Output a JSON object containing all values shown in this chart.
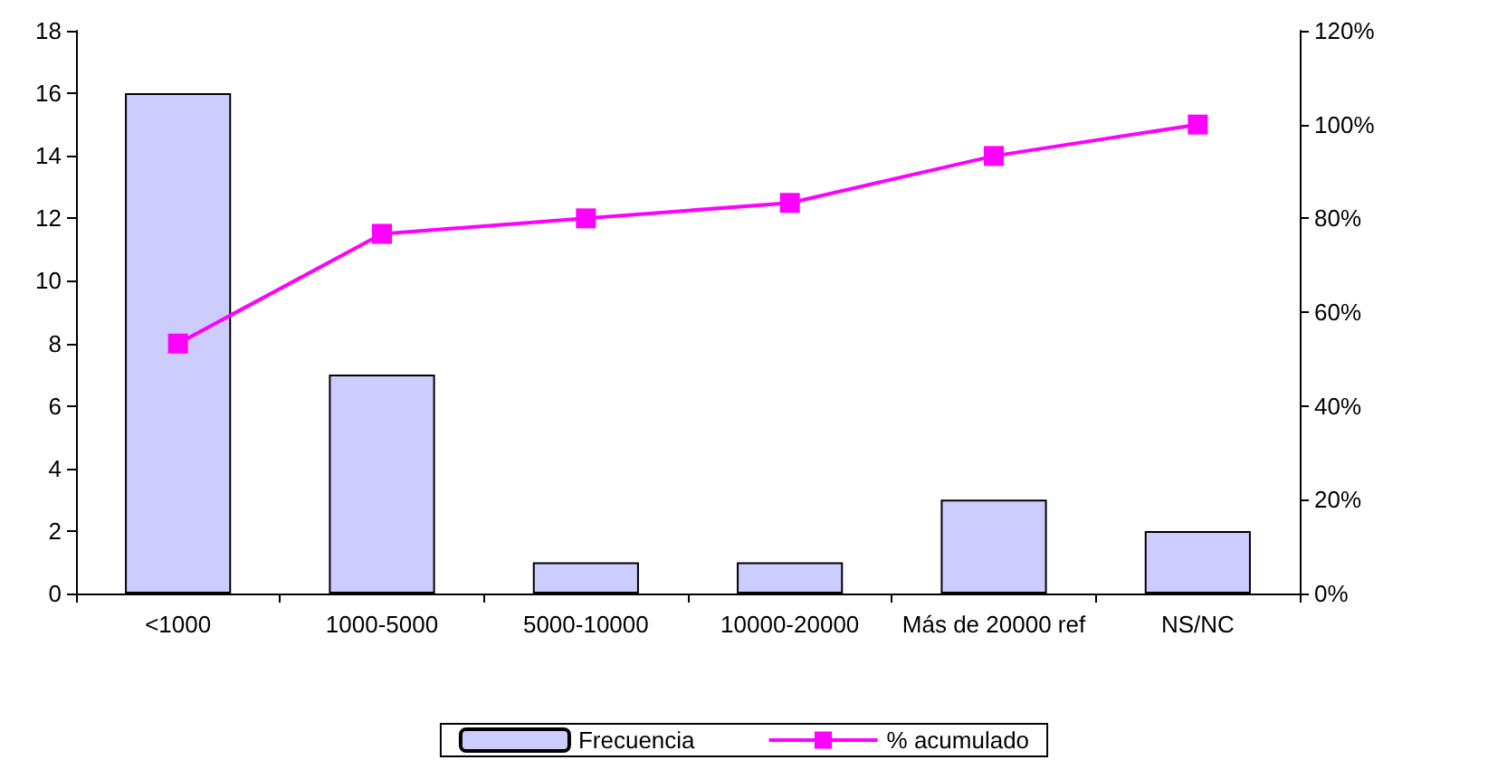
{
  "chart_data": {
    "type": "bar",
    "categories": [
      "<1000",
      "1000-5000",
      "5000-10000",
      "10000-20000",
      "Más de 20000 ref",
      "NS/NC"
    ],
    "series": [
      {
        "name": "Frecuencia",
        "color": "#ccccff",
        "values": [
          16,
          7,
          1,
          1,
          3,
          2
        ]
      },
      {
        "name": "% acumulado",
        "type": "line",
        "axis": "y2",
        "color": "#ff00ff",
        "marker": "square",
        "values": [
          53.3,
          76.7,
          80,
          83.3,
          93.3,
          100
        ]
      }
    ],
    "ylim": [
      0,
      18
    ],
    "yticks": [
      0,
      2,
      4,
      6,
      8,
      10,
      12,
      14,
      16,
      18
    ],
    "y2lim": [
      0,
      120
    ],
    "y2ticks": [
      {
        "value": 0,
        "label": "0%"
      },
      {
        "value": 20,
        "label": "20%"
      },
      {
        "value": 40,
        "label": "40%"
      },
      {
        "value": 60,
        "label": "60%"
      },
      {
        "value": 80,
        "label": "80%"
      },
      {
        "value": 100,
        "label": "100%"
      },
      {
        "value": 120,
        "label": "120%"
      }
    ],
    "grid": false,
    "legend": "bottom"
  }
}
